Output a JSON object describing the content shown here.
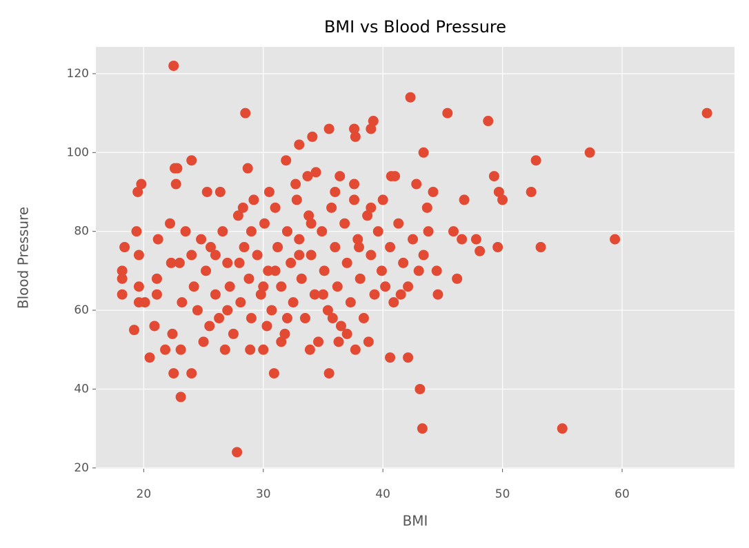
{
  "chart_data": {
    "type": "scatter",
    "title": "BMI vs Blood Pressure",
    "x_label": "BMI",
    "y_label": "Blood Pressure",
    "color": "#e24a33",
    "grid": true,
    "xlim": [
      16.0,
      69.4
    ],
    "ylim": [
      19.8,
      126.8
    ],
    "xticks": [
      20,
      30,
      40,
      50,
      60
    ],
    "yticks": [
      20,
      40,
      60,
      80,
      100,
      120
    ],
    "x": [
      22.5,
      28.5,
      42.3,
      45.4,
      67.1,
      48.8,
      39.2,
      35.5,
      37.6,
      39,
      37.7,
      34.1,
      33,
      43.4,
      57.3,
      52.8,
      24,
      31.9,
      22.6,
      22.8,
      28.7,
      49.3,
      19.8,
      19.5,
      22.7,
      25.3,
      52.4,
      49.7,
      50,
      46.8,
      59.4,
      53.2,
      49.6,
      55,
      43.3,
      43.1,
      27.8,
      23.1,
      22.5,
      24,
      30.9,
      35.5,
      40.6,
      42.1,
      20.5,
      19.2,
      18.2,
      18.2,
      18.2,
      18.4,
      19.4,
      19.6,
      19.6,
      19.6,
      20.1,
      20.9,
      21.1,
      21.1,
      21.2,
      22.2,
      22.3,
      21.8,
      23.1,
      22.4,
      44.6,
      46.2,
      44.5,
      47.8,
      48.1,
      46.6,
      45.9,
      41,
      40.7,
      42.8,
      44.2,
      43.7,
      37.6,
      36.4,
      34.4,
      33.7,
      24.5,
      25,
      25.2,
      25.6,
      26,
      26.3,
      26.6,
      27,
      27.2,
      27.5,
      27.9,
      28.1,
      28.4,
      28.8,
      29,
      29.2,
      29.5,
      29.8,
      30,
      30.1,
      30.4,
      30.7,
      31,
      31.2,
      31.5,
      31.8,
      32,
      32.3,
      32.5,
      32.8,
      33,
      33.2,
      33.5,
      33.8,
      34,
      34.3,
      34.6,
      34.9,
      35.1,
      35.4,
      35.7,
      36,
      36.2,
      36.5,
      36.8,
      37,
      37.3,
      37.6,
      37.9,
      38.1,
      38.4,
      38.7,
      39,
      39.3,
      39.6,
      39.9,
      40.2,
      40.6,
      40.9,
      41.3,
      41.7,
      42.1,
      42.5,
      43,
      43.4,
      43.8,
      26,
      27,
      28,
      29,
      30,
      31,
      32,
      33,
      34,
      35,
      36,
      37,
      38,
      39,
      24.2,
      24.8,
      25.5,
      23.5,
      23.2,
      23,
      24,
      26.8,
      28.9,
      30.5,
      31.5,
      33.9,
      36.3,
      37.7,
      35.8,
      32.7,
      30.3,
      28.3,
      26.4,
      38.8,
      40,
      41.5
    ],
    "values": [
      122,
      110,
      114,
      110,
      110,
      108,
      108,
      106,
      106,
      106,
      104,
      104,
      102,
      100,
      100,
      98,
      98,
      98,
      96,
      96,
      96,
      94,
      92,
      90,
      92,
      90,
      90,
      90,
      88,
      88,
      78,
      76,
      76,
      30,
      30,
      40,
      24,
      38,
      44,
      44,
      44,
      44,
      48,
      48,
      48,
      55,
      64,
      68,
      70,
      76,
      80,
      74,
      66,
      62,
      62,
      56,
      64,
      68,
      78,
      82,
      72,
      50,
      50,
      54,
      64,
      68,
      70,
      78,
      75,
      78,
      80,
      94,
      94,
      92,
      90,
      86,
      92,
      94,
      95,
      94,
      60,
      52,
      70,
      76,
      64,
      58,
      80,
      72,
      66,
      54,
      84,
      62,
      76,
      68,
      58,
      88,
      74,
      64,
      50,
      82,
      70,
      60,
      86,
      76,
      66,
      54,
      80,
      72,
      62,
      88,
      78,
      68,
      58,
      84,
      74,
      64,
      52,
      80,
      70,
      60,
      86,
      76,
      66,
      56,
      82,
      72,
      62,
      88,
      78,
      68,
      58,
      84,
      74,
      64,
      80,
      70,
      66,
      76,
      62,
      82,
      72,
      66,
      78,
      70,
      74,
      80,
      74,
      60,
      72,
      80,
      66,
      70,
      58,
      74,
      82,
      64,
      90,
      54,
      76,
      86,
      66,
      78,
      56,
      80,
      62,
      72,
      74,
      50,
      50,
      90,
      52,
      50,
      52,
      50,
      58,
      92,
      56,
      86,
      90,
      52,
      88,
      64
    ]
  }
}
